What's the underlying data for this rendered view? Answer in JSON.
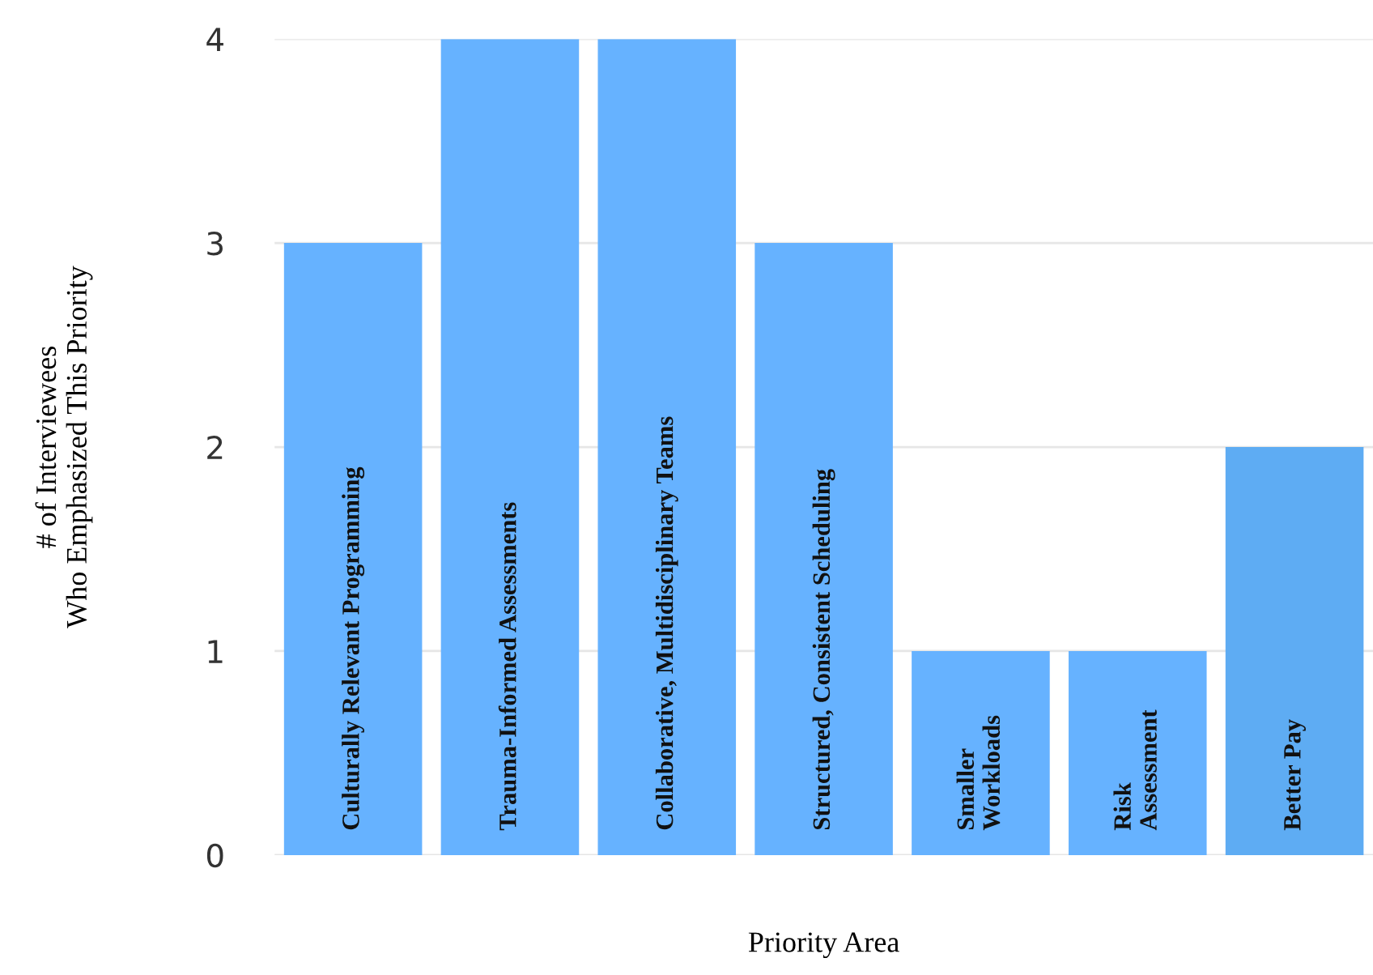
{
  "chart_data": {
    "type": "bar",
    "xlabel": "Priority Area",
    "ylabel": "# of Interviewees\nWho Emphasized This Priority",
    "categories": [
      "Culturally Relevant Programming",
      "Trauma-Informed Assessments",
      "Collaborative, Multidisciplinary Teams",
      "Structured, Consistent Scheduling",
      "Smaller\nWorkloads",
      "Risk\nAssessment",
      "Better Pay"
    ],
    "values": [
      3,
      4,
      4,
      3,
      1,
      1,
      2
    ],
    "colors": [
      "#66b2ff",
      "#66b2ff",
      "#66b2ff",
      "#66b2ff",
      "#66b2ff",
      "#66b2ff",
      "#5eacf3"
    ],
    "ylim": [
      0,
      4
    ],
    "yticks": [
      0,
      1,
      2,
      3,
      4
    ],
    "grid": "y",
    "legend": false
  }
}
